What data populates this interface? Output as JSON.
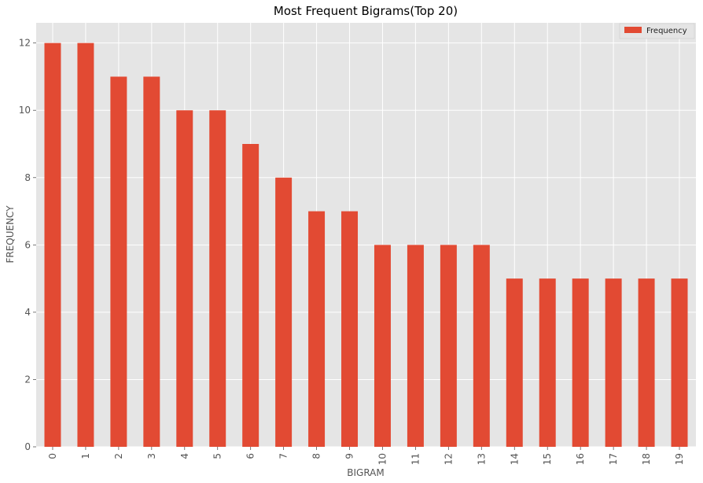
{
  "chart_data": {
    "type": "bar",
    "title": "Most Frequent Bigrams(Top 20)",
    "xlabel": "BIGRAM",
    "ylabel": "FREQUENCY",
    "categories": [
      "0",
      "1",
      "2",
      "3",
      "4",
      "5",
      "6",
      "7",
      "8",
      "9",
      "10",
      "11",
      "12",
      "13",
      "14",
      "15",
      "16",
      "17",
      "18",
      "19"
    ],
    "series": [
      {
        "name": "Frequency",
        "values": [
          12,
          12,
          11,
          11,
          10,
          10,
          9,
          8,
          7,
          7,
          6,
          6,
          6,
          6,
          5,
          5,
          5,
          5,
          5,
          5
        ]
      }
    ],
    "ylim": [
      0,
      12.6
    ],
    "yticks": [
      "0",
      "2",
      "4",
      "6",
      "8",
      "10",
      "12"
    ],
    "grid": true,
    "legend_position": "top-right"
  },
  "colors": {
    "bar": "#E24A33",
    "plot_bg": "#E5E5E5",
    "grid": "#FFFFFF"
  }
}
